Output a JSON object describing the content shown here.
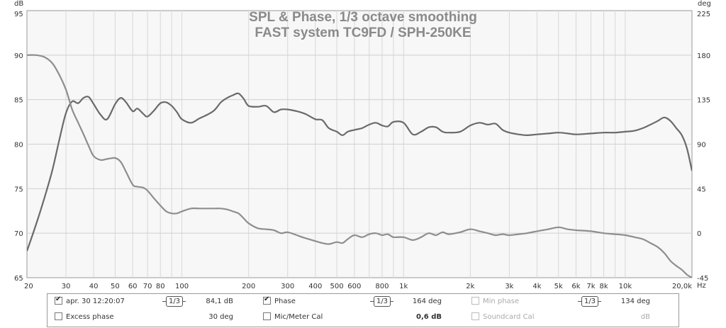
{
  "chart_data": {
    "type": "line",
    "title": "SPL & Phase, 1/3 octave smoothing",
    "subtitle": "FAST system TC9FD / SPH-250KE",
    "y_unit": "dB",
    "y2_unit": "deg",
    "x_unit": "Hz",
    "xscale": "log",
    "xlim": [
      20,
      20000
    ],
    "ylim": [
      65,
      95
    ],
    "y2lim": [
      -45,
      225
    ],
    "grid": true,
    "x_ticks": [
      20,
      30,
      40,
      50,
      60,
      70,
      80,
      100,
      200,
      300,
      400,
      500,
      600,
      800,
      1000,
      2000,
      3000,
      4000,
      5000,
      6000,
      7000,
      8000,
      10000,
      20000
    ],
    "x_tick_labels": [
      "20",
      "30",
      "40",
      "50",
      "60",
      "70",
      "80",
      "100",
      "200",
      "300",
      "400",
      "500",
      "600",
      "800",
      "1k",
      "2k",
      "3k",
      "4k",
      "5k",
      "6k",
      "7k",
      "8k",
      "10k",
      "20,0k"
    ],
    "y_ticks": [
      65,
      70,
      75,
      80,
      85,
      90,
      95
    ],
    "y2_ticks": [
      -45,
      0,
      45,
      90,
      135,
      180,
      225
    ],
    "series": [
      {
        "name": "apr. 30 12:20:07",
        "axis": "left",
        "color": "#6a6a6a",
        "x": [
          20,
          22,
          24,
          26,
          28,
          30,
          32,
          34,
          36,
          38,
          40,
          43,
          46,
          50,
          53,
          56,
          60,
          63,
          67,
          70,
          75,
          80,
          85,
          90,
          95,
          100,
          110,
          120,
          130,
          140,
          150,
          160,
          170,
          180,
          190,
          200,
          220,
          240,
          260,
          280,
          300,
          330,
          360,
          400,
          430,
          460,
          500,
          530,
          560,
          600,
          650,
          700,
          750,
          800,
          850,
          900,
          1000,
          1100,
          1200,
          1300,
          1400,
          1500,
          1600,
          1800,
          2000,
          2200,
          2400,
          2600,
          2800,
          3000,
          3300,
          3600,
          4000,
          4500,
          5000,
          5500,
          6000,
          7000,
          8000,
          9000,
          10000,
          11000,
          12000,
          13000,
          14000,
          15000,
          16000,
          17000,
          18000,
          19000,
          20000
        ],
        "y": [
          68,
          71,
          74,
          77,
          80.5,
          83.5,
          84.8,
          84.6,
          85.2,
          85.3,
          84.5,
          83.3,
          82.8,
          84.5,
          85.2,
          84.7,
          83.7,
          84,
          83.4,
          83.1,
          83.8,
          84.6,
          84.7,
          84.3,
          83.6,
          82.8,
          82.4,
          82.9,
          83.3,
          83.8,
          84.7,
          85.2,
          85.5,
          85.7,
          85.1,
          84.3,
          84.2,
          84.3,
          83.6,
          83.9,
          83.9,
          83.7,
          83.4,
          82.8,
          82.7,
          81.8,
          81.4,
          81,
          81.4,
          81.6,
          81.8,
          82.2,
          82.4,
          82.1,
          82,
          82.5,
          82.4,
          81.1,
          81.4,
          81.9,
          81.9,
          81.4,
          81.3,
          81.4,
          82.1,
          82.4,
          82.2,
          82.3,
          81.6,
          81.3,
          81.1,
          81,
          81.1,
          81.2,
          81.3,
          81.2,
          81.1,
          81.2,
          81.3,
          81.3,
          81.4,
          81.5,
          81.8,
          82.2,
          82.6,
          83,
          82.6,
          81.8,
          81,
          79.5,
          77
        ]
      },
      {
        "name": "Phase",
        "axis": "right",
        "color": "#8e8e8e",
        "x": [
          20,
          22,
          24,
          26,
          28,
          30,
          32,
          34,
          36,
          38,
          40,
          43,
          46,
          50,
          53,
          56,
          60,
          63,
          67,
          70,
          75,
          80,
          85,
          90,
          95,
          100,
          110,
          120,
          130,
          140,
          150,
          160,
          170,
          180,
          190,
          200,
          220,
          240,
          260,
          280,
          300,
          330,
          360,
          400,
          430,
          460,
          500,
          530,
          560,
          600,
          650,
          700,
          750,
          800,
          850,
          900,
          1000,
          1100,
          1200,
          1300,
          1400,
          1500,
          1600,
          1800,
          2000,
          2200,
          2400,
          2600,
          2800,
          3000,
          3300,
          3600,
          4000,
          4500,
          5000,
          5500,
          6000,
          7000,
          8000,
          9000,
          10000,
          11000,
          12000,
          13000,
          14000,
          15000,
          16000,
          17000,
          18000,
          19000,
          20000
        ],
        "y": [
          180,
          180,
          178,
          172,
          160,
          145,
          125,
          112,
          100,
          88,
          78,
          74,
          75,
          76,
          72,
          62,
          49,
          47,
          46,
          43,
          35,
          28,
          22,
          20,
          20,
          22,
          25,
          25,
          25,
          25,
          25,
          24,
          22,
          20,
          15,
          10,
          5,
          4,
          3,
          0,
          1,
          -2,
          -5,
          -8,
          -10,
          -11,
          -9,
          -10,
          -6,
          -2,
          -4,
          -1,
          0,
          -2,
          -1,
          -4,
          -4,
          -7,
          -4,
          0,
          -2,
          1,
          -1,
          1,
          4,
          2,
          0,
          -2,
          -1,
          -2,
          -1,
          0,
          2,
          4,
          6,
          4,
          3,
          2,
          0,
          -1,
          -2,
          -4,
          -6,
          -10,
          -14,
          -20,
          -28,
          -33,
          -37,
          -42,
          -45
        ]
      }
    ]
  },
  "legend": {
    "row1": [
      {
        "name": "apr. 30 12:20:07",
        "checked": true,
        "enabled": true,
        "smoothing": "1/3",
        "value": "84,1 dB"
      },
      {
        "name": "Phase",
        "checked": true,
        "enabled": true,
        "smoothing": "1/3",
        "value": "164 deg"
      },
      {
        "name": "Min phase",
        "checked": false,
        "enabled": false,
        "smoothing": "1/3",
        "value": "134 deg"
      }
    ],
    "row2": [
      {
        "name": "Excess phase",
        "checked": false,
        "enabled": true,
        "value": "30 deg"
      },
      {
        "name": "Mic/Meter Cal",
        "checked": false,
        "enabled": true,
        "value": "0,6 dB"
      },
      {
        "name": "Soundcard Cal",
        "checked": false,
        "enabled": false,
        "value": "dB"
      }
    ]
  }
}
